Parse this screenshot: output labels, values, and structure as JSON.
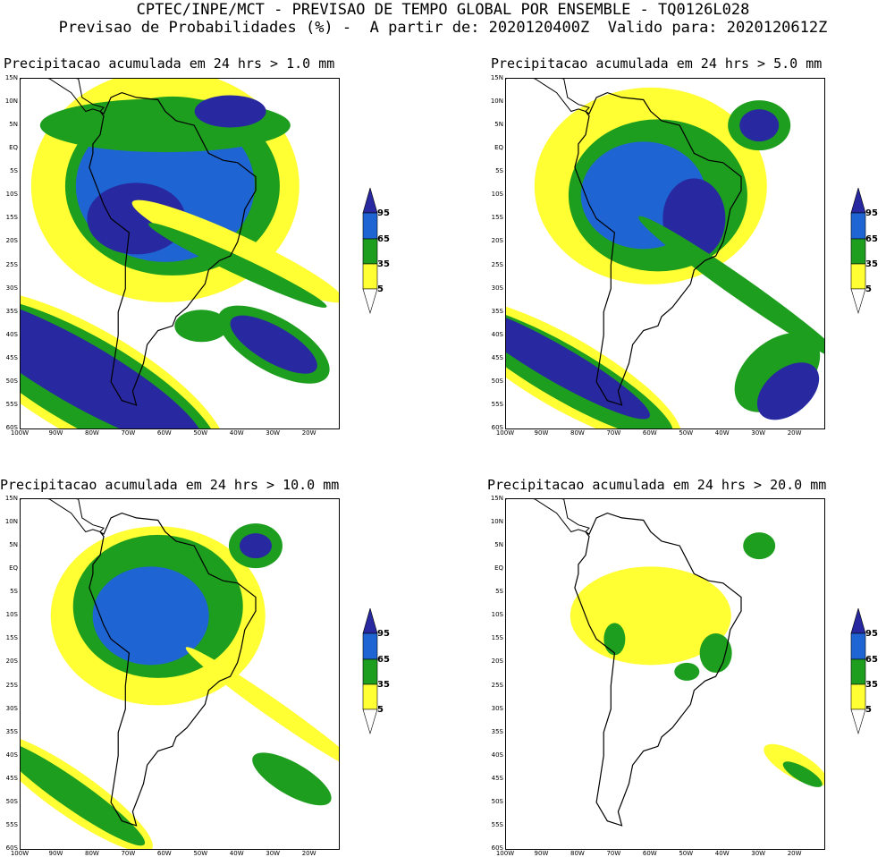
{
  "header": {
    "line1": "CPTEC/INPE/MCT - PREVISAO DE TEMPO GLOBAL POR ENSEMBLE - TQ0126L028",
    "line2": "Previsao de Probabilidades (%) -  A partir de: 2020120400Z  Valido para: 2020120612Z"
  },
  "panels": [
    {
      "title": "Precipitacao acumulada em 24 hrs > 1.0 mm"
    },
    {
      "title": "Precipitacao acumulada em 24 hrs > 5.0 mm"
    },
    {
      "title": "Precipitacao acumulada em 24 hrs > 10.0 mm"
    },
    {
      "title": "Precipitacao acumulada em 24 hrs > 20.0 mm"
    }
  ],
  "lat_labels": [
    "15N",
    "10N",
    "5N",
    "EQ",
    "5S",
    "10S",
    "15S",
    "20S",
    "25S",
    "30S",
    "35S",
    "40S",
    "45S",
    "50S",
    "55S",
    "60S"
  ],
  "lon_labels": [
    "100W",
    "90W",
    "80W",
    "70W",
    "60W",
    "50W",
    "40W",
    "30W",
    "20W"
  ],
  "legend": {
    "levels": [
      "95",
      "65",
      "35",
      "5"
    ],
    "colors": {
      "yellow": "#ffff33",
      "green": "#1e9e1e",
      "blue": "#1e64d2",
      "navy": "#2828a0"
    }
  }
}
